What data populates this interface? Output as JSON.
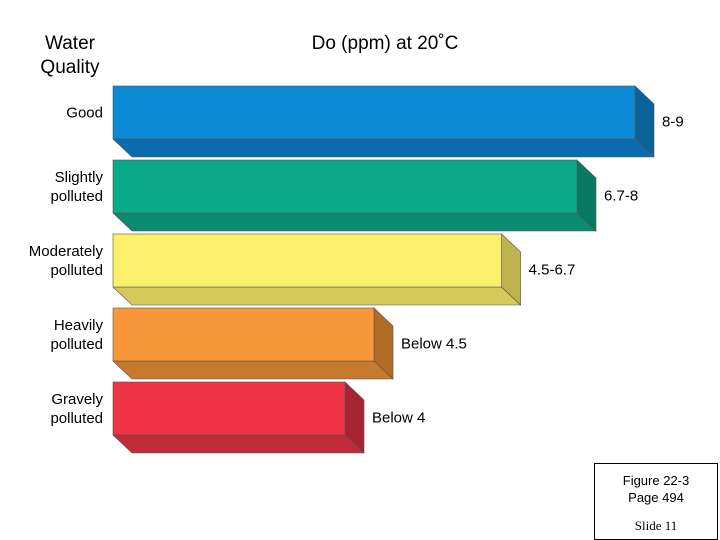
{
  "header": {
    "quality_label": "Water\nQuality",
    "measure_label": "Do (ppm) at 20˚C"
  },
  "chart_data": {
    "type": "bar",
    "orientation": "horizontal",
    "style": "3d",
    "xlabel": "Do (ppm) at 20˚C",
    "ylabel": "Water\nQuality",
    "categories": [
      "Good",
      "Slightly\npolluted",
      "Moderately\npolluted",
      "Heavily\npolluted",
      "Gravely\npolluted"
    ],
    "values": [
      9,
      8,
      6.7,
      4.5,
      4
    ],
    "ranges": [
      [
        8,
        9
      ],
      [
        6.7,
        8
      ],
      [
        4.5,
        6.7
      ],
      [
        null,
        4.5
      ],
      [
        null,
        4
      ]
    ],
    "data_labels": [
      "8-9",
      "6.7-8",
      "4.5-6.7",
      "Below 4.5",
      "Below 4"
    ],
    "xlim": [
      0,
      9
    ],
    "grid": false,
    "legend": "none",
    "colors": {
      "front": [
        "#0a8ad4",
        "#0aa98a",
        "#fbf06a",
        "#f7973a",
        "#ee3345"
      ],
      "top": [
        "#0a6cae",
        "#0a8a70",
        "#d6c95a",
        "#c77a2e",
        "#c02a3b"
      ],
      "side": [
        "#096399",
        "#087a62",
        "#bfb34f",
        "#b06b26",
        "#a82433"
      ]
    }
  },
  "figure_box": {
    "caption": "Figure 22-3\nPage 494",
    "slide": "Slide 11"
  }
}
